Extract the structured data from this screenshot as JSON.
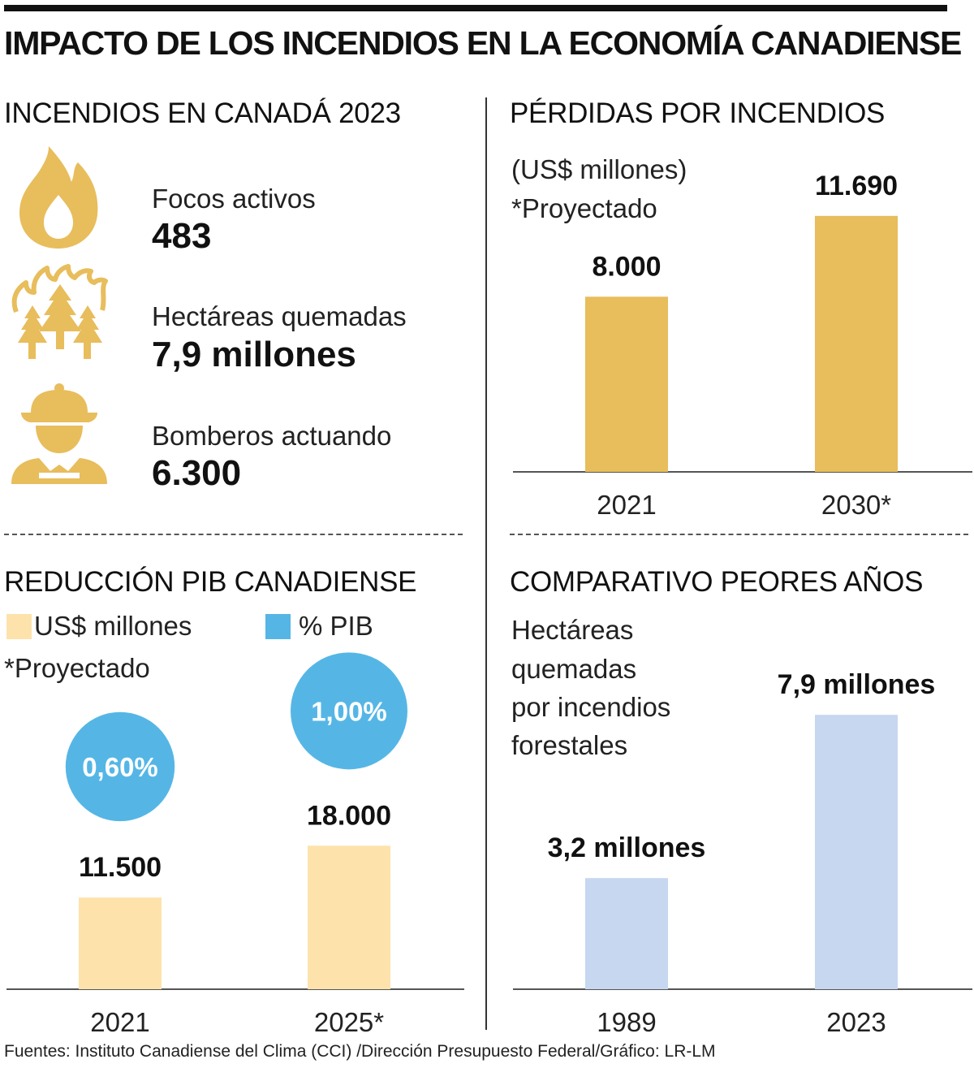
{
  "header": {
    "title": "IMPACTO DE LOS INCENDIOS EN LA ECONOMÍA CANADIENSE"
  },
  "colors": {
    "gold": "#e8bd5c",
    "light_gold": "#fde3ab",
    "blue_circle": "#55b6e6",
    "light_blue": "#c6d7ef",
    "axis": "#555555"
  },
  "stats": {
    "title": "INCENDIOS EN CANADÁ 2023",
    "items": [
      {
        "icon": "flame-icon",
        "label": "Focos activos",
        "value": "483"
      },
      {
        "icon": "burning-trees-icon",
        "label": "Hectáreas quemadas",
        "value": "7,9 millones"
      },
      {
        "icon": "firefighter-icon",
        "label": "Bomberos actuando",
        "value": "6.300"
      }
    ]
  },
  "chart_data": [
    {
      "type": "bar",
      "title": "PÉRDIDAS POR INCENDIOS",
      "subtitle": "(US$ millones)",
      "note": "*Proyectado",
      "categories": [
        "2021",
        "2030*"
      ],
      "values": [
        8000,
        11690
      ],
      "value_labels": [
        "8.000",
        "11.690"
      ],
      "ylim": [
        0,
        12500
      ]
    },
    {
      "type": "bar",
      "title": "REDUCCIÓN PIB CANADIENSE",
      "legend": [
        "US$ millones",
        "% PIB"
      ],
      "note": "*Proyectado",
      "categories": [
        "2021",
        "2025*"
      ],
      "series": [
        {
          "name": "US$ millones",
          "values": [
            11500,
            18000
          ],
          "labels": [
            "11.500",
            "18.000"
          ]
        },
        {
          "name": "% PIB",
          "values": [
            0.6,
            1.0
          ],
          "labels": [
            "0,60%",
            "1,00%"
          ]
        }
      ],
      "ylim": [
        0,
        38000
      ]
    },
    {
      "type": "bar",
      "title": "COMPARATIVO PEORES AÑOS",
      "subtitle_lines": [
        "Hectáreas",
        "quemadas",
        "por incendios",
        "forestales"
      ],
      "categories": [
        "1989",
        "2023"
      ],
      "values": [
        3.2,
        7.9
      ],
      "value_labels": [
        "3,2 millones",
        "7,9 millones"
      ],
      "ylim": [
        0,
        10.5
      ]
    }
  ],
  "footer": {
    "sources": "Fuentes: Instituto Canadiense del Clima (CCI) /Dirección Presupuesto Federal/Gráfico: LR-LM"
  }
}
